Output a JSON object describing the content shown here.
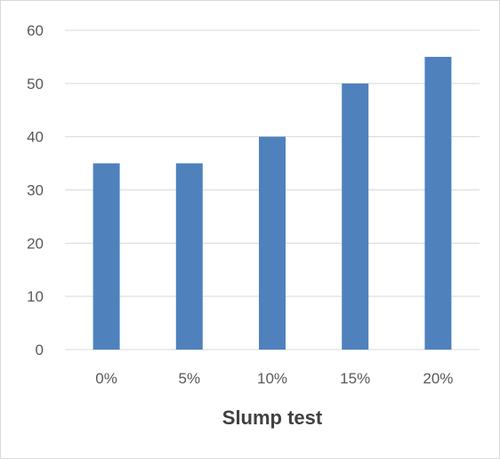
{
  "chart_data": {
    "type": "bar",
    "categories": [
      "0%",
      "5%",
      "10%",
      "15%",
      "20%"
    ],
    "values": [
      35,
      35,
      40,
      50,
      55
    ],
    "title": "",
    "xlabel": "Slump test",
    "ylabel": "",
    "ylim": [
      0,
      60
    ],
    "yticks": [
      "0",
      "10",
      "20",
      "30",
      "40",
      "50",
      "60"
    ],
    "grid": true,
    "legend": "none",
    "bar_color": "#4f81bd",
    "grid_color": "#d9d9d9"
  }
}
